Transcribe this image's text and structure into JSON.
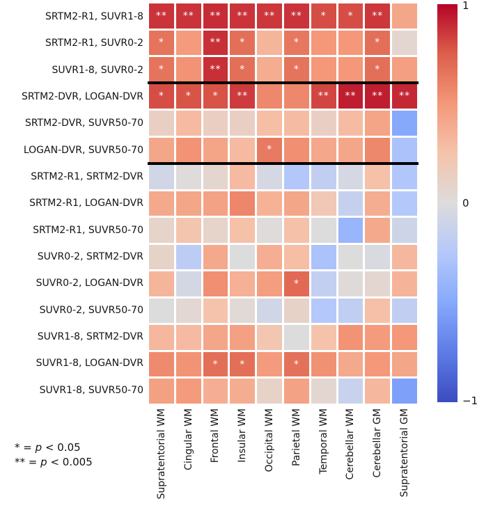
{
  "chart_data": {
    "type": "heatmap",
    "colormap": "coolwarm",
    "vmin": -1,
    "vmax": 1,
    "columns": [
      "Supratentorial WM",
      "Cingular WM",
      "Frontal WM",
      "Insular WM",
      "Occipital WM",
      "Parietal WM",
      "Temporal WM",
      "Cerebellar WM",
      "Cerebellar GM",
      "Supratentorial GM"
    ],
    "rows": [
      "SRTM2-R1, SUVR1-8",
      "SRTM2-R1, SUVR0-2",
      "SUVR1-8, SUVR0-2",
      "SRTM2-DVR, LOGAN-DVR",
      "SRTM2-DVR, SUVR50-70",
      "LOGAN-DVR, SUVR50-70",
      "SRTM2-R1, SRTM2-DVR",
      "SRTM2-R1, LOGAN-DVR",
      "SRTM2-R1, SUVR50-70",
      "SUVR0-2, SRTM2-DVR",
      "SUVR0-2, LOGAN-DVR",
      "SUVR0-2, SUVR50-70",
      "SUVR1-8, SRTM2-DVR",
      "SUVR1-8, LOGAN-DVR",
      "SUVR1-8, SUVR50-70"
    ],
    "values": [
      [
        0.87,
        0.87,
        0.89,
        0.87,
        0.86,
        0.87,
        0.8,
        0.8,
        0.86,
        0.42
      ],
      [
        0.66,
        0.48,
        0.88,
        0.68,
        0.33,
        0.64,
        0.5,
        0.5,
        0.68,
        0.06
      ],
      [
        0.66,
        0.52,
        0.88,
        0.68,
        0.38,
        0.66,
        0.5,
        0.5,
        0.68,
        0.46
      ],
      [
        0.8,
        0.78,
        0.78,
        0.85,
        0.57,
        0.57,
        0.82,
        0.93,
        0.93,
        0.9
      ],
      [
        0.13,
        0.3,
        0.14,
        0.13,
        0.28,
        0.29,
        0.13,
        0.29,
        0.43,
        -0.5
      ],
      [
        0.42,
        0.52,
        0.43,
        0.3,
        0.63,
        0.54,
        0.41,
        0.42,
        0.57,
        -0.3
      ],
      [
        -0.08,
        0.01,
        0.07,
        0.3,
        -0.05,
        -0.26,
        -0.17,
        -0.05,
        0.26,
        -0.27
      ],
      [
        0.4,
        0.42,
        0.44,
        0.58,
        0.35,
        0.42,
        0.2,
        -0.15,
        0.38,
        -0.25
      ],
      [
        0.09,
        0.23,
        0.09,
        0.26,
        0.01,
        0.26,
        0.0,
        -0.4,
        0.4,
        -0.1
      ],
      [
        0.1,
        -0.2,
        0.4,
        0.0,
        0.37,
        0.28,
        -0.3,
        0.0,
        -0.03,
        0.32
      ],
      [
        0.33,
        -0.06,
        0.54,
        0.36,
        0.47,
        0.7,
        -0.16,
        0.02,
        0.06,
        0.34
      ],
      [
        0.0,
        0.05,
        0.25,
        0.03,
        -0.08,
        0.1,
        -0.25,
        -0.18,
        0.27,
        -0.17
      ],
      [
        0.32,
        0.3,
        0.42,
        0.45,
        0.22,
        0.0,
        0.25,
        0.52,
        0.48,
        0.5
      ],
      [
        0.56,
        0.52,
        0.68,
        0.68,
        0.48,
        0.67,
        0.53,
        0.4,
        0.5,
        0.42
      ],
      [
        0.45,
        0.48,
        0.37,
        0.38,
        0.1,
        0.44,
        0.06,
        -0.13,
        0.32,
        -0.55
      ]
    ],
    "annotations": [
      [
        "**",
        "**",
        "**",
        "**",
        "**",
        "**",
        "*",
        "*",
        "**",
        ""
      ],
      [
        "*",
        "",
        "**",
        "*",
        "",
        "*",
        "",
        "",
        "*",
        ""
      ],
      [
        "*",
        "",
        "**",
        "*",
        "",
        "*",
        "",
        "",
        "*",
        ""
      ],
      [
        "*",
        "*",
        "*",
        "**",
        "",
        "",
        "**",
        "**",
        "**",
        "**"
      ],
      [
        "",
        "",
        "",
        "",
        "",
        "",
        "",
        "",
        "",
        ""
      ],
      [
        "",
        "",
        "",
        "",
        "*",
        "",
        "",
        "",
        "",
        ""
      ],
      [
        "",
        "",
        "",
        "",
        "",
        "",
        "",
        "",
        "",
        ""
      ],
      [
        "",
        "",
        "",
        "",
        "",
        "",
        "",
        "",
        "",
        ""
      ],
      [
        "",
        "",
        "",
        "",
        "",
        "",
        "",
        "",
        "",
        ""
      ],
      [
        "",
        "",
        "",
        "",
        "",
        "",
        "",
        "",
        "",
        ""
      ],
      [
        "",
        "",
        "",
        "",
        "",
        "*",
        "",
        "",
        "",
        ""
      ],
      [
        "",
        "",
        "",
        "",
        "",
        "",
        "",
        "",
        "",
        ""
      ],
      [
        "",
        "",
        "",
        "",
        "",
        "",
        "",
        "",
        "",
        ""
      ],
      [
        "",
        "",
        "*",
        "*",
        "",
        "*",
        "",
        "",
        "",
        ""
      ],
      [
        "",
        "",
        "",
        "",
        "",
        "",
        "",
        "",
        "",
        ""
      ]
    ],
    "separator_after_rows": [
      3,
      6
    ],
    "colorbar_ticks": [
      "1",
      "0",
      "−1"
    ],
    "annotation_legend": [
      {
        "symbol": "*",
        "eq": "=",
        "p": "p",
        "condition": "< 0.05"
      },
      {
        "symbol": "**",
        "eq": "=",
        "p": "p",
        "condition": "< 0.005"
      }
    ]
  },
  "colors": {
    "background": "#ffffff",
    "separator": "#000000",
    "cell_gap": "#ffffff",
    "annotation_text": "#ffffff",
    "coolwarm_stops": [
      {
        "v": -1.0,
        "c": "#3b4cc0"
      },
      {
        "v": -0.75,
        "c": "#5d7ce6"
      },
      {
        "v": -0.5,
        "c": "#86a9fc"
      },
      {
        "v": -0.25,
        "c": "#b5c8fb"
      },
      {
        "v": 0.0,
        "c": "#dddcdc"
      },
      {
        "v": 0.25,
        "c": "#f5c3ab"
      },
      {
        "v": 0.5,
        "c": "#f49879"
      },
      {
        "v": 0.75,
        "c": "#dd5f4b"
      },
      {
        "v": 1.0,
        "c": "#b40426"
      }
    ]
  }
}
